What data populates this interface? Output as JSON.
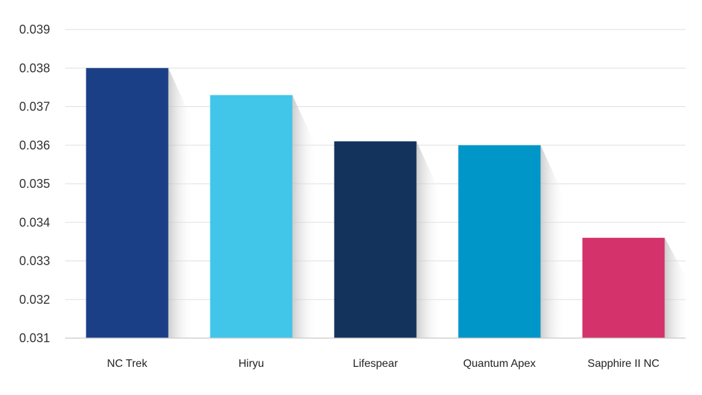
{
  "chart_data": {
    "type": "bar",
    "title": "",
    "xlabel": "",
    "ylabel": "",
    "categories": [
      "NC Trek",
      "Hiryu",
      "Lifespear",
      "Quantum Apex",
      "Sapphire II NC"
    ],
    "values": [
      0.038,
      0.0373,
      0.0361,
      0.036,
      0.0336
    ],
    "colors": [
      "#1b3f87",
      "#41c6ea",
      "#13335c",
      "#0096c8",
      "#d3336a"
    ],
    "ylim": [
      0.031,
      0.039
    ],
    "yticks": [
      "0.031",
      "0.032",
      "0.033",
      "0.034",
      "0.035",
      "0.036",
      "0.037",
      "0.038",
      "0.039"
    ],
    "grid": true,
    "legend": "none"
  }
}
